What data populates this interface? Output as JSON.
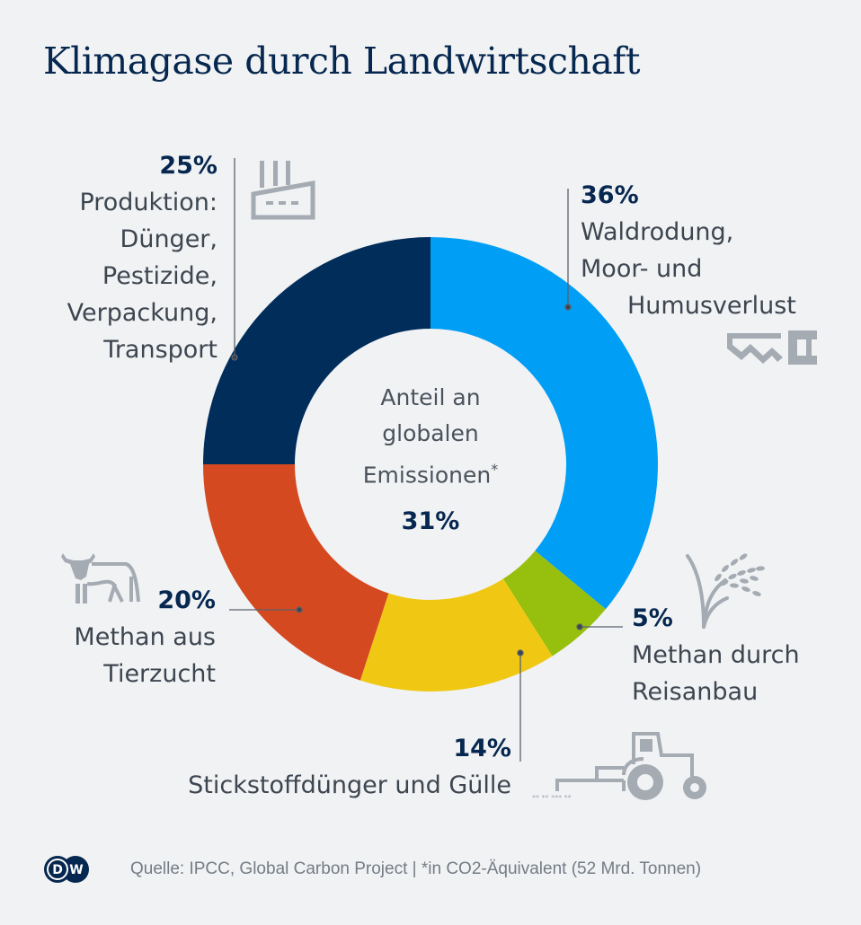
{
  "title": "Klimagase durch Landwirtschaft",
  "center": {
    "lines": [
      "Anteil an",
      "globalen",
      "Emissionen"
    ],
    "asterisk": "*",
    "value": "31%"
  },
  "footer": {
    "source": "Quelle: IPCC, Global Carbon Project | *in CO2-Äquivalent (52 Mrd. Tonnen)",
    "logo_text_1": "D",
    "logo_text_2": "W"
  },
  "colors": {
    "background": "#f1f2f4",
    "title": "#06274f",
    "icon": "#a4abb3",
    "leader": "#5a616a"
  },
  "chart_data": {
    "type": "pie",
    "variant": "donut",
    "title": "Klimagase durch Landwirtschaft",
    "center_text": "Anteil an globalen Emissionen* 31%",
    "start": "12 o'clock, clockwise",
    "unit": "%",
    "slices": [
      {
        "label": "Waldrodung, Moor- und Humusverlust",
        "value": 36,
        "pct_label": "36%",
        "color": "#009ff5",
        "icon": "saw-icon"
      },
      {
        "label": "Methan durch Reisanbau",
        "value": 5,
        "pct_label": "5%",
        "color": "#97bf0d",
        "icon": "rice-plant-icon"
      },
      {
        "label": "Stickstoffdünger und Gülle",
        "value": 14,
        "pct_label": "14%",
        "color": "#f0c814",
        "icon": "tractor-icon"
      },
      {
        "label": "Methan aus Tierzucht",
        "value": 20,
        "pct_label": "20%",
        "color": "#d4491f",
        "icon": "cow-icon"
      },
      {
        "label": "Produktion: Dünger, Pestizide, Verpackung, Transport",
        "value": 25,
        "pct_label": "25%",
        "color": "#002d5a",
        "icon": "factory-icon"
      }
    ]
  },
  "labels": {
    "s0": {
      "pct": "36%",
      "text": "Waldrodung,\nMoor- und"
    },
    "s0_last": "Humusverlust",
    "s1": {
      "pct": "5%",
      "text": "Methan durch\nReisanbau"
    },
    "s2": {
      "pct": "14%",
      "text": "Stickstoffdünger und Gülle"
    },
    "s3": {
      "pct": "20%",
      "text": "Methan aus\nTierzucht"
    },
    "s4": {
      "pct": "25%",
      "text": "Produktion:\nDünger,\nPestizide,\nVerpackung,\nTransport"
    }
  }
}
